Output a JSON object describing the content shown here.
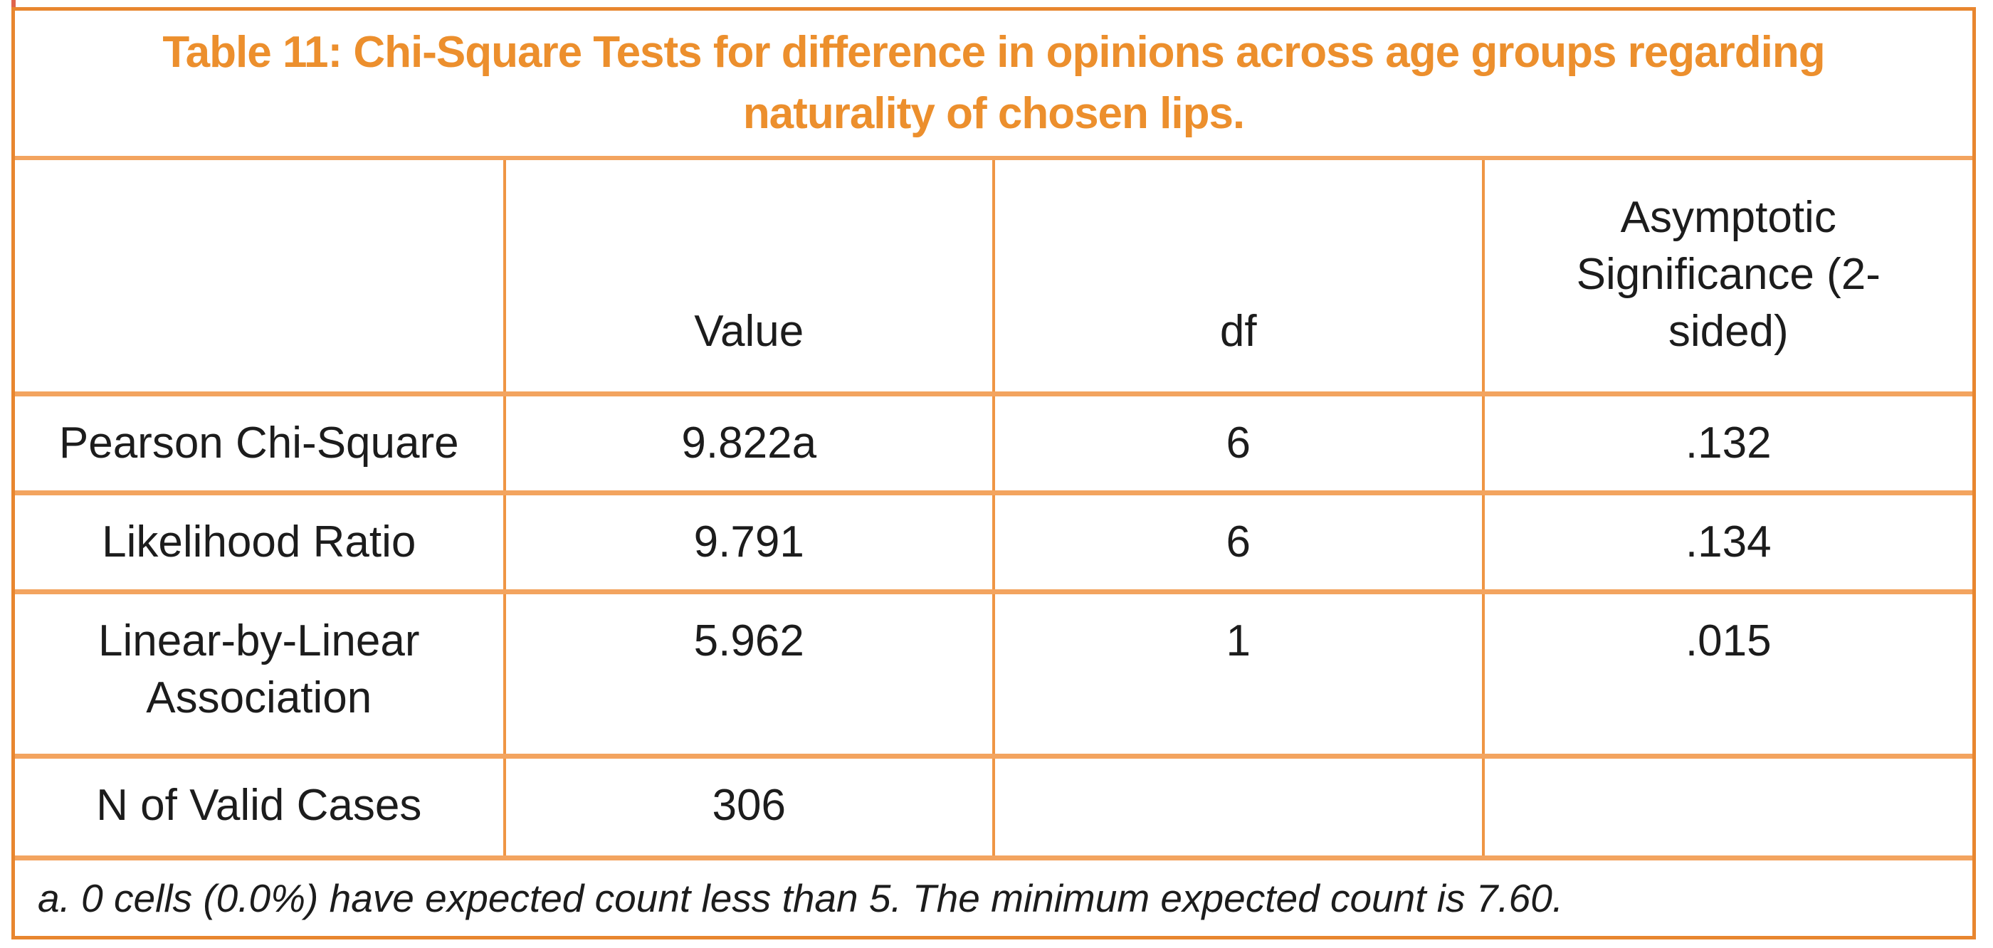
{
  "colors": {
    "title_text": "#ec8f2d",
    "outer_border": "#e8862f",
    "h_line": "#f3a45f",
    "v_line": "#ef9544",
    "body_text": "#1c1c1c",
    "page_bg": "#ffffff"
  },
  "table": {
    "title": "Table 11: Chi-Square Tests for difference in opinions across age groups regarding naturality of chosen lips.",
    "title_lines": [
      "Table 11: Chi-Square Tests for difference in opinions across age groups regarding",
      "naturality of chosen lips."
    ],
    "columns": {
      "row_header": "",
      "value": "Value",
      "df": "df",
      "sig": "Asymptotic Significance (2-sided)"
    },
    "rows": [
      {
        "label": "Pearson Chi-Square",
        "value": "9.822a",
        "df": "6",
        "sig": ".132"
      },
      {
        "label": "Likelihood Ratio",
        "value": "9.791",
        "df": "6",
        "sig": ".134"
      },
      {
        "label": "Linear-by-Linear Association",
        "value": "5.962",
        "df": "1",
        "sig": ".015"
      },
      {
        "label": "N of Valid Cases",
        "value": "306",
        "df": "",
        "sig": ""
      }
    ],
    "footnote": "a. 0 cells (0.0%) have expected count less than 5. The minimum expected count is 7.60."
  }
}
